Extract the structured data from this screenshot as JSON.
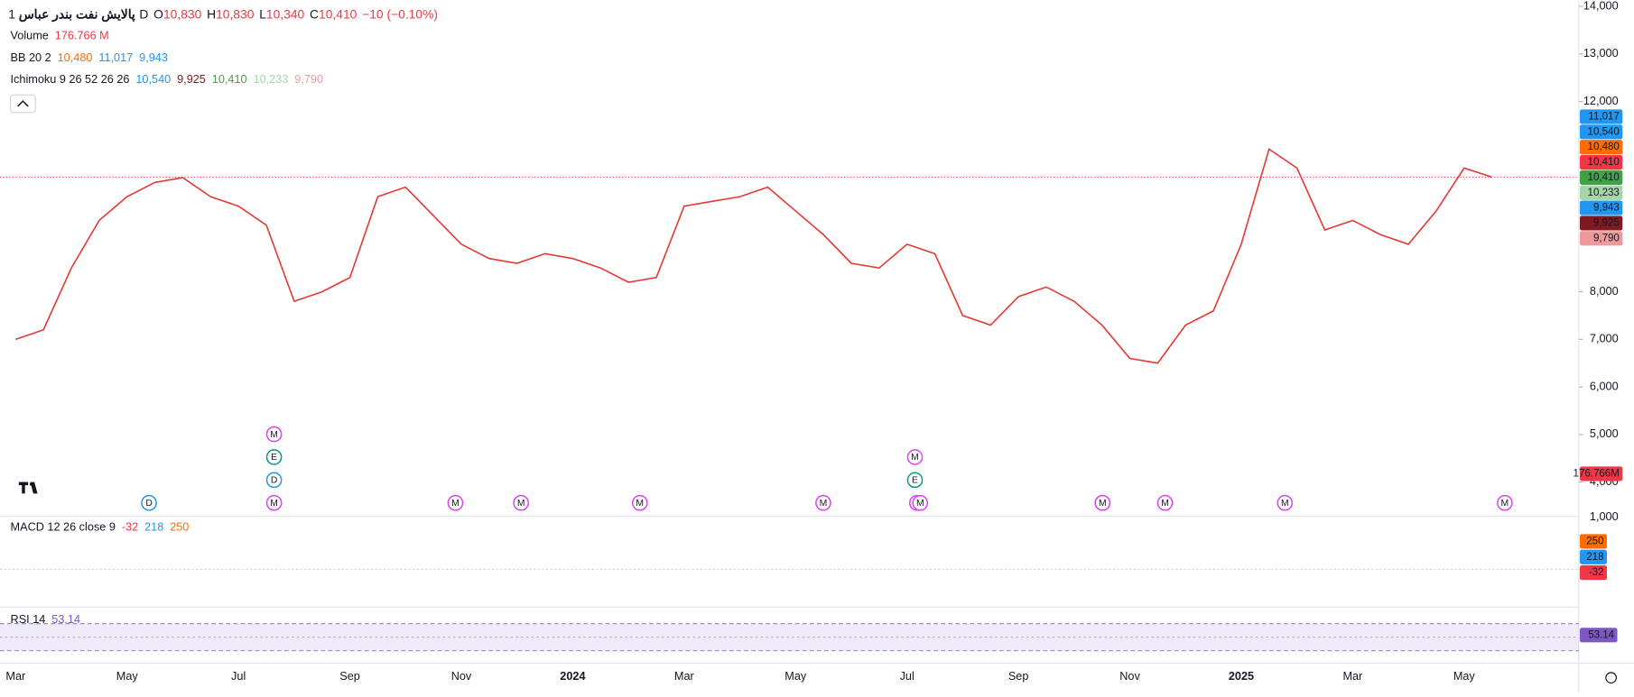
{
  "header": {
    "symbol": "پالایش نفت بندر عباس",
    "interval": "· 1D",
    "ohlc": [
      {
        "key": "O",
        "value": "10,830"
      },
      {
        "key": "H",
        "value": "10,830"
      },
      {
        "key": "L",
        "value": "10,340"
      },
      {
        "key": "C",
        "value": "10,410"
      }
    ],
    "change": "−10 (−0.10%)"
  },
  "indicators": [
    {
      "name": "Volume",
      "values": [
        {
          "text": "176.766 M",
          "color": "#f23645"
        }
      ]
    },
    {
      "name": "BB 20 2",
      "values": [
        {
          "text": "10,480",
          "color": "#ff6d00"
        },
        {
          "text": "11,017",
          "color": "#2196f3"
        },
        {
          "text": "9,943",
          "color": "#2196f3"
        }
      ]
    },
    {
      "name": "Ichimoku 9 26 52 26 26",
      "values": [
        {
          "text": "10,540",
          "color": "#2196f3"
        },
        {
          "text": "9,925",
          "color": "#801922"
        },
        {
          "text": "10,410",
          "color": "#43a047"
        },
        {
          "text": "10,233",
          "color": "#a5d6a7"
        },
        {
          "text": "9,790",
          "color": "#ef9a9a"
        }
      ]
    }
  ],
  "chart_data": {
    "type": "line",
    "color": "#e53935",
    "ylim": [
      3300,
      14130
    ],
    "yticks": [
      {
        "value": 14000,
        "label": "14,000"
      },
      {
        "value": 13000,
        "label": "13,000"
      },
      {
        "value": 12000,
        "label": "12,000"
      },
      {
        "value": 8000,
        "label": "8,000"
      },
      {
        "value": 7000,
        "label": "7,000"
      },
      {
        "value": 6000,
        "label": "6,000"
      },
      {
        "value": 5000,
        "label": "5,000"
      },
      {
        "value": 4000,
        "label": "4,000"
      }
    ],
    "categories": [
      "Mar",
      null,
      null,
      null,
      "May",
      null,
      null,
      null,
      "Jul",
      null,
      null,
      null,
      "Sep",
      null,
      null,
      null,
      "Nov",
      null,
      null,
      null,
      "2024",
      null,
      null,
      null,
      "Mar",
      null,
      null,
      null,
      "May",
      null,
      null,
      null,
      "Jul",
      null,
      null,
      null,
      "Sep",
      null,
      null,
      null,
      "Nov",
      null,
      null,
      null,
      "2025",
      null,
      null,
      null,
      "Mar",
      null,
      null,
      null,
      "May",
      null
    ],
    "values": [
      7000,
      7200,
      8500,
      9500,
      10000,
      10300,
      10400,
      10000,
      9800,
      9400,
      7800,
      8000,
      8300,
      10000,
      10200,
      9600,
      9000,
      8700,
      8600,
      8800,
      8700,
      8500,
      8200,
      8300,
      9800,
      9900,
      10000,
      10200,
      9700,
      9200,
      8600,
      8500,
      9000,
      8800,
      7500,
      7300,
      7900,
      8100,
      7800,
      7300,
      6600,
      6500,
      7300,
      7600,
      9000,
      11000,
      10600,
      9300,
      9500,
      9200,
      9000,
      9700,
      10600,
      10410
    ]
  },
  "volume_axis_label": "1,000",
  "price_labels": [
    {
      "text": "11,017",
      "bg": "#2196f3"
    },
    {
      "text": "10,540",
      "bg": "#2196f3"
    },
    {
      "text": "10,480",
      "bg": "#ff6d00"
    },
    {
      "text": "10,410",
      "bg": "#f23645"
    },
    {
      "text": "10,410",
      "bg": "#43a047"
    },
    {
      "text": "10,233",
      "bg": "#a5d6a7"
    },
    {
      "text": "9,943",
      "bg": "#2196f3"
    },
    {
      "text": "9,925",
      "bg": "#801922"
    },
    {
      "text": "9,790",
      "bg": "#ef9a9a"
    },
    {
      "text": "176.766M",
      "bg": "#f23645"
    }
  ],
  "events": [
    "M",
    "E",
    "D",
    "M",
    "E",
    "D",
    "M",
    "M",
    "M",
    "M",
    "M",
    "M",
    "M",
    "M",
    "M",
    "M",
    "M",
    "M"
  ],
  "macd": {
    "title": "MACD 12 26 close 9",
    "values": [
      {
        "text": "-32",
        "color": "#f23645"
      },
      {
        "text": "218",
        "color": "#2196f3"
      },
      {
        "text": "250",
        "color": "#ff6d00"
      }
    ]
  },
  "rsi": {
    "title": "RSI 14",
    "value": "53.14"
  }
}
